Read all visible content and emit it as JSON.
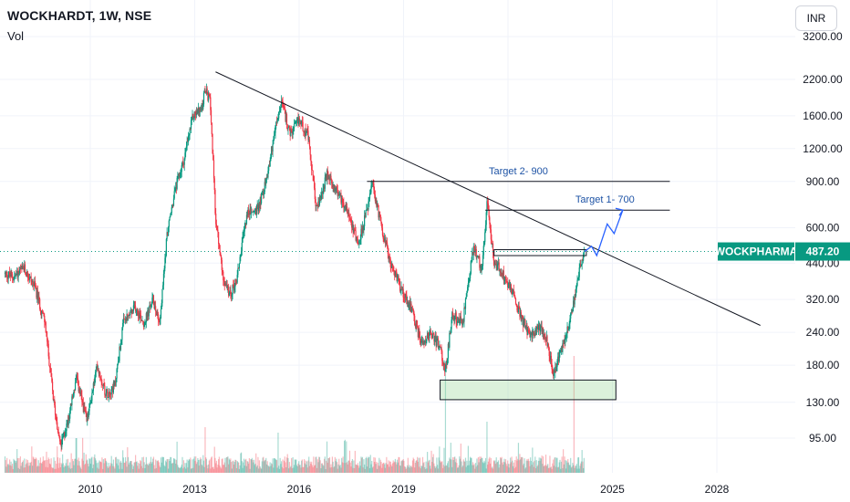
{
  "header": {
    "title": "WOCKHARDT, 1W, NSE",
    "vol_label": "Vol"
  },
  "currency_button": "INR",
  "price_tag": {
    "symbol": "WOCKPHARMA",
    "price": "487.20",
    "color": "#089981"
  },
  "chart_data": {
    "type": "candlestick",
    "scale": "log",
    "ylim": [
      80,
      3200
    ],
    "xlim": [
      2007.5,
      2029.6
    ],
    "grid": true,
    "yticks": [
      {
        "value": 3200,
        "label": "3200.00"
      },
      {
        "value": 2200,
        "label": "2200.00"
      },
      {
        "value": 1600,
        "label": "1600.00"
      },
      {
        "value": 1200,
        "label": "1200.00"
      },
      {
        "value": 900,
        "label": "900.00"
      },
      {
        "value": 600,
        "label": "600.00"
      },
      {
        "value": 440,
        "label": "440.00"
      },
      {
        "value": 320,
        "label": "320.00"
      },
      {
        "value": 240,
        "label": "240.00"
      },
      {
        "value": 180,
        "label": "180.00"
      },
      {
        "value": 130,
        "label": "130.00"
      },
      {
        "value": 95,
        "label": "95.00"
      }
    ],
    "xticks": [
      {
        "value": 2010,
        "label": "2010"
      },
      {
        "value": 2013,
        "label": "2013"
      },
      {
        "value": 2016,
        "label": "2016"
      },
      {
        "value": 2019,
        "label": "2019"
      },
      {
        "value": 2022,
        "label": "2022"
      },
      {
        "value": 2025,
        "label": "2025"
      },
      {
        "value": 2028,
        "label": "2028"
      }
    ],
    "price_path": [
      [
        2007.55,
        400
      ],
      [
        2007.8,
        390
      ],
      [
        2008.1,
        420
      ],
      [
        2008.4,
        360
      ],
      [
        2008.7,
        260
      ],
      [
        2008.95,
        130
      ],
      [
        2009.15,
        88
      ],
      [
        2009.35,
        110
      ],
      [
        2009.6,
        160
      ],
      [
        2009.9,
        110
      ],
      [
        2010.2,
        180
      ],
      [
        2010.45,
        140
      ],
      [
        2010.7,
        150
      ],
      [
        2010.95,
        260
      ],
      [
        2011.3,
        300
      ],
      [
        2011.55,
        260
      ],
      [
        2011.8,
        320
      ],
      [
        2012.0,
        260
      ],
      [
        2012.2,
        560
      ],
      [
        2012.45,
        850
      ],
      [
        2012.7,
        1100
      ],
      [
        2012.95,
        1600
      ],
      [
        2013.2,
        1700
      ],
      [
        2013.3,
        2000
      ],
      [
        2013.45,
        1800
      ],
      [
        2013.6,
        650
      ],
      [
        2013.8,
        400
      ],
      [
        2014.0,
        330
      ],
      [
        2014.2,
        380
      ],
      [
        2014.5,
        680
      ],
      [
        2014.8,
        700
      ],
      [
        2015.05,
        900
      ],
      [
        2015.3,
        1400
      ],
      [
        2015.5,
        1800
      ],
      [
        2015.75,
        1350
      ],
      [
        2016.0,
        1550
      ],
      [
        2016.25,
        1350
      ],
      [
        2016.5,
        700
      ],
      [
        2016.8,
        950
      ],
      [
        2017.1,
        820
      ],
      [
        2017.4,
        700
      ],
      [
        2017.7,
        520
      ],
      [
        2017.95,
        700
      ],
      [
        2018.1,
        880
      ],
      [
        2018.35,
        620
      ],
      [
        2018.6,
        450
      ],
      [
        2018.9,
        360
      ],
      [
        2019.2,
        300
      ],
      [
        2019.5,
        220
      ],
      [
        2019.8,
        240
      ],
      [
        2020.05,
        210
      ],
      [
        2020.2,
        170
      ],
      [
        2020.4,
        280
      ],
      [
        2020.7,
        260
      ],
      [
        2021.0,
        500
      ],
      [
        2021.25,
        420
      ],
      [
        2021.4,
        740
      ],
      [
        2021.6,
        450
      ],
      [
        2021.85,
        400
      ],
      [
        2022.1,
        350
      ],
      [
        2022.4,
        270
      ],
      [
        2022.65,
        230
      ],
      [
        2022.9,
        250
      ],
      [
        2023.1,
        230
      ],
      [
        2023.3,
        165
      ],
      [
        2023.55,
        210
      ],
      [
        2023.75,
        260
      ],
      [
        2023.95,
        340
      ],
      [
        2024.1,
        450
      ],
      [
        2024.2,
        487.2
      ]
    ],
    "volume_spikes": [
      [
        2020.2,
        0.95
      ],
      [
        2023.9,
        1.0
      ],
      [
        2013.3,
        0.35
      ],
      [
        2021.4,
        0.4
      ],
      [
        2015.4,
        0.3
      ],
      [
        2009.6,
        0.25
      ]
    ],
    "levels": [
      {
        "label": "Target 2- 900",
        "value": 900,
        "x_start": 2017.95,
        "x_end": 2026.65
      },
      {
        "label": "Target 1- 700",
        "value": 700,
        "x_start": 2021.35,
        "x_end": 2026.65
      }
    ],
    "last_price": 487.2,
    "trendline": [
      [
        2013.6,
        2350
      ],
      [
        2029.25,
        255
      ]
    ],
    "support_zone": {
      "x_start": 2020.05,
      "x_end": 2025.1,
      "low": 133,
      "high": 158
    },
    "resistance_box": {
      "x_start": 2021.6,
      "x_end": 2024.25,
      "low": 470,
      "high": 495
    },
    "projection_path": [
      [
        2024.2,
        487.2
      ],
      [
        2024.4,
        510
      ],
      [
        2024.55,
        470
      ],
      [
        2024.85,
        620
      ],
      [
        2025.05,
        570
      ],
      [
        2025.3,
        700
      ]
    ]
  }
}
